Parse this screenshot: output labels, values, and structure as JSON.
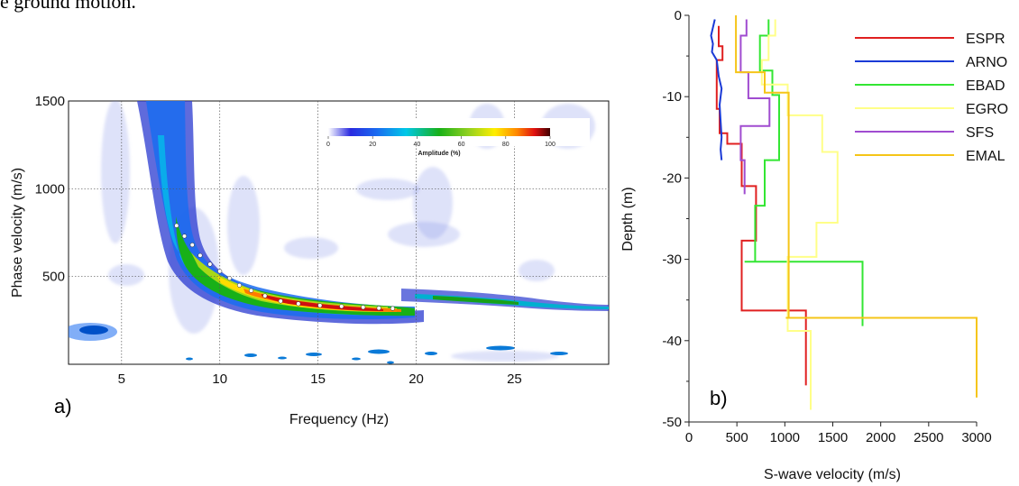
{
  "page_text": {
    "top_fragment": "e ground motion."
  },
  "colors": {
    "ESPR": "#e02020",
    "ARNO": "#1a3ad6",
    "EBAD": "#33e633",
    "EGRO": "#ffff88",
    "SFS": "#a04cd0",
    "EMAL": "#f5c518"
  },
  "chart_data": [
    {
      "type": "heatmap",
      "panel_label": "a)",
      "xlabel": "Frequency (Hz)",
      "ylabel": "Phase velocity (m/s)",
      "xlim": [
        2.3,
        29.8
      ],
      "ylim": [
        0,
        1500
      ],
      "x_ticks": [
        5,
        10,
        15,
        20,
        25
      ],
      "y_ticks": [
        500,
        1000,
        1500
      ],
      "grid": true,
      "colorbar": {
        "title": "Amplitude (%)",
        "ticks": [
          0,
          20,
          40,
          60,
          80,
          100
        ],
        "range": [
          0,
          100
        ],
        "placement": "top-right"
      },
      "picks": {
        "x": [
          7.8,
          8.2,
          8.6,
          9.0,
          9.5,
          10.0,
          10.5,
          11.0,
          11.6,
          12.3,
          13.1,
          14.0,
          15.1,
          16.2,
          17.3,
          18.1,
          18.8
        ],
        "y": [
          790,
          730,
          680,
          620,
          570,
          530,
          490,
          450,
          420,
          390,
          360,
          345,
          335,
          330,
          325,
          320,
          318
        ]
      }
    },
    {
      "type": "line",
      "panel_label": "b)",
      "xlabel": "S-wave velocity (m/s)",
      "ylabel": "Depth (m)",
      "xlim": [
        0,
        3000
      ],
      "ylim": [
        -50,
        0
      ],
      "x_ticks": [
        0,
        500,
        1000,
        1500,
        2000,
        2500,
        3000
      ],
      "y_ticks": [
        0,
        -10,
        -20,
        -30,
        -40,
        -50
      ],
      "legend": "top-right",
      "series": [
        {
          "name": "ESPR",
          "color": "#e02020",
          "x": [
            310,
            310,
            350,
            350,
            290,
            290,
            320,
            320,
            400,
            400,
            550,
            550,
            700,
            700,
            550,
            550,
            640,
            640,
            1220,
            1220
          ],
          "y": [
            -1.3,
            -3.8,
            -3.8,
            -5.5,
            -5.5,
            -11.5,
            -11.5,
            -14.5,
            -14.5,
            -15.8,
            -15.8,
            -21,
            -21,
            -27.7,
            -27.7,
            -36.3,
            -36.3,
            -36.3,
            -36.3,
            -45.5
          ]
        },
        {
          "name": "ARNO",
          "color": "#1a3ad6",
          "x": [
            270,
            250,
            230,
            250,
            240,
            290,
            300,
            310,
            340,
            320,
            330,
            340,
            330,
            340
          ],
          "y": [
            -0.5,
            -1.5,
            -2.5,
            -3.5,
            -4.5,
            -5.5,
            -6.5,
            -7.5,
            -9,
            -11,
            -13,
            -15,
            -16.5,
            -17.8
          ]
        },
        {
          "name": "EBAD",
          "color": "#33e633",
          "x": [
            830,
            830,
            740,
            740,
            870,
            870,
            940,
            940,
            790,
            790,
            690,
            690,
            580,
            580,
            630,
            630,
            1810,
            1810
          ],
          "y": [
            -0.5,
            -2.5,
            -2.5,
            -6.8,
            -6.8,
            -9.8,
            -9.8,
            -17.8,
            -17.8,
            -23.4,
            -23.4,
            -30.3,
            -30.3,
            -30.3,
            -30.3,
            -30.3,
            -30.3,
            -38.2
          ]
        },
        {
          "name": "EGRO",
          "color": "#ffff88",
          "x": [
            900,
            900,
            830,
            830,
            760,
            760,
            1030,
            1030,
            1390,
            1390,
            1550,
            1550,
            1330,
            1330,
            1030,
            1030,
            1160,
            1160,
            1270,
            1270
          ],
          "y": [
            -0.5,
            -2.5,
            -2.5,
            -5.5,
            -5.5,
            -8.5,
            -8.5,
            -12.3,
            -12.3,
            -16.8,
            -16.8,
            -25.5,
            -25.5,
            -29.7,
            -29.7,
            -38.8,
            -38.8,
            -38.8,
            -38.8,
            -48.5
          ]
        },
        {
          "name": "SFS",
          "color": "#a04cd0",
          "x": [
            600,
            600,
            540,
            540,
            620,
            620,
            840,
            840,
            540,
            540,
            580,
            580
          ],
          "y": [
            -0.5,
            -2.5,
            -2.5,
            -7.0,
            -7.0,
            -10.2,
            -10.2,
            -13.6,
            -13.6,
            -17.8,
            -17.8,
            -22.0
          ]
        },
        {
          "name": "EMAL",
          "color": "#f5c518",
          "x": [
            490,
            490,
            700,
            700,
            790,
            790,
            1040,
            1040,
            1010,
            1010,
            3000,
            3000
          ],
          "y": [
            0,
            -7.0,
            -7.0,
            -7.0,
            -7.0,
            -9.5,
            -9.5,
            -37.2,
            -37.2,
            -37.2,
            -37.2,
            -47.0
          ]
        }
      ]
    }
  ]
}
